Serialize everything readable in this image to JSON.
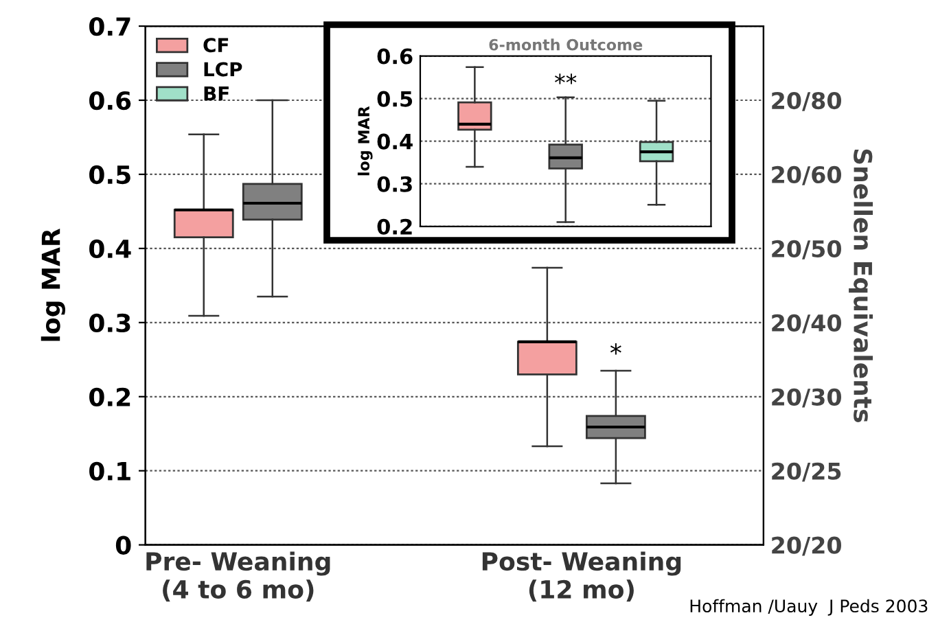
{
  "chart_data": [
    {
      "type": "box",
      "ylabel": "log MAR",
      "y2label": "Snellen Equivalents",
      "categories": [
        "Pre- Weaning\n(4 to 6 mo)",
        "Post- Weaning\n(12 mo)"
      ],
      "series": [
        {
          "name": "CF",
          "color": "#f4a0a0",
          "boxes": [
            {
              "low": 0.309,
              "q1": 0.415,
              "median": 0.452,
              "q3": 0.452,
              "high": 0.554
            },
            {
              "low": 0.133,
              "q1": 0.23,
              "median": 0.274,
              "q3": 0.274,
              "high": 0.374
            }
          ]
        },
        {
          "name": "LCP",
          "color": "#808080",
          "boxes": [
            {
              "low": 0.335,
              "q1": 0.439,
              "median": 0.461,
              "q3": 0.487,
              "high": 0.6
            },
            {
              "low": 0.083,
              "q1": 0.144,
              "median": 0.159,
              "q3": 0.174,
              "high": 0.235
            }
          ]
        },
        {
          "name": "BF",
          "color": "#a0e0c8",
          "boxes": [
            null,
            null
          ]
        }
      ],
      "ylim": [
        0,
        0.7
      ],
      "yticks": [
        0,
        0.1,
        0.2,
        0.3,
        0.4,
        0.5,
        0.6,
        0.7
      ],
      "y2_categories": [
        "20/80",
        "20/60",
        "20/50",
        "20/40",
        "20/30",
        "20/25",
        "20/20"
      ],
      "grid": "y",
      "legend": "top left",
      "annotations": [
        {
          "text": "*",
          "x": "Post- Weaning\n(12 mo)",
          "y": 0.235
        },
        "Hoffman /Uauy  J Peds 2003"
      ]
    },
    {
      "type": "box",
      "title": "6-month Outcome",
      "ylabel": "log MAR",
      "categories": [
        null,
        null,
        null
      ],
      "colors": [
        "#f4a0a0",
        "#808080",
        "#a0e0c8"
      ],
      "boxes": [
        {
          "low": 0.34,
          "q1": 0.427,
          "median": 0.44,
          "q3": 0.491,
          "high": 0.574
        },
        {
          "low": 0.21,
          "q1": 0.336,
          "median": 0.361,
          "q3": 0.392,
          "high": 0.503
        },
        {
          "low": 0.251,
          "q1": 0.353,
          "median": 0.375,
          "q3": 0.398,
          "high": 0.495
        }
      ],
      "ylim": [
        0.2,
        0.6
      ],
      "yticks": [
        0.2,
        0.3,
        0.4,
        0.5,
        0.6
      ],
      "grid": "y",
      "tick_labels": "y",
      "annotations": [
        {
          "text": "**",
          "y": 0.503
        }
      ]
    }
  ]
}
